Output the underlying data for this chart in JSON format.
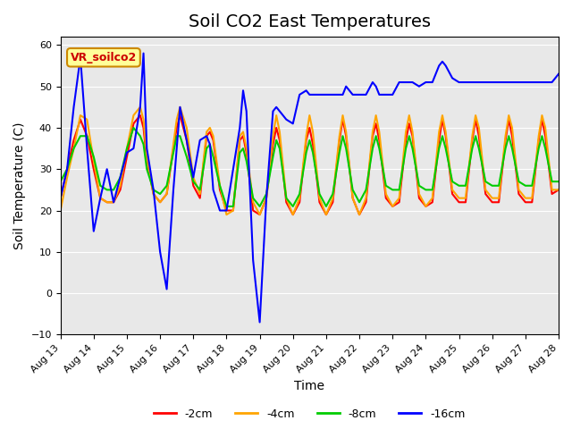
{
  "title": "Soil CO2 East Temperatures",
  "xlabel": "Time",
  "ylabel": "Soil Temperature (C)",
  "ylim": [
    -10,
    62
  ],
  "xlim": [
    0,
    15
  ],
  "xtick_labels": [
    "Aug 13",
    "Aug 14",
    "Aug 15",
    "Aug 16",
    "Aug 17",
    "Aug 18",
    "Aug 19",
    "Aug 20",
    "Aug 21",
    "Aug 22",
    "Aug 23",
    "Aug 24",
    "Aug 25",
    "Aug 26",
    "Aug 27",
    "Aug 28"
  ],
  "xtick_positions": [
    0,
    1,
    2,
    3,
    4,
    5,
    6,
    7,
    8,
    9,
    10,
    11,
    12,
    13,
    14,
    15
  ],
  "legend_labels": [
    "-2cm",
    "-4cm",
    "-8cm",
    "-16cm"
  ],
  "legend_colors": [
    "#ff0000",
    "#ffa500",
    "#00cc00",
    "#0000ff"
  ],
  "line_colors": [
    "#ff0000",
    "#ffa500",
    "#00cc00",
    "#0000ff"
  ],
  "bg_color": "#e8e8e8",
  "label_box_color": "#ffff99",
  "label_box_text": "VR_soilco2",
  "label_box_text_color": "#cc0000",
  "title_fontsize": 14,
  "axis_label_fontsize": 10,
  "tick_fontsize": 8,
  "t": [
    0,
    0.2,
    0.4,
    0.6,
    0.8,
    1.0,
    1.2,
    1.4,
    1.5,
    1.6,
    1.8,
    2.0,
    2.2,
    2.4,
    2.5,
    2.6,
    2.8,
    3.0,
    3.2,
    3.4,
    3.5,
    3.6,
    3.8,
    4.0,
    4.2,
    4.4,
    4.5,
    4.6,
    4.8,
    5.0,
    5.2,
    5.4,
    5.5,
    5.6,
    5.8,
    6.0,
    6.2,
    6.4,
    6.5,
    6.6,
    6.8,
    7.0,
    7.2,
    7.4,
    7.5,
    7.6,
    7.8,
    8.0,
    8.2,
    8.4,
    8.5,
    8.6,
    8.8,
    9.0,
    9.2,
    9.4,
    9.5,
    9.6,
    9.8,
    10.0,
    10.2,
    10.4,
    10.5,
    10.6,
    10.8,
    11.0,
    11.2,
    11.4,
    11.5,
    11.6,
    11.8,
    12.0,
    12.2,
    12.4,
    12.5,
    12.6,
    12.8,
    13.0,
    13.2,
    13.4,
    13.5,
    13.6,
    13.8,
    14.0,
    14.2,
    14.4,
    14.5,
    14.6,
    14.8,
    15.0
  ],
  "y_2cm": [
    23,
    30,
    37,
    42,
    38,
    30,
    23,
    22,
    22,
    22,
    25,
    33,
    41,
    43,
    40,
    32,
    24,
    22,
    24,
    35,
    40,
    43,
    37,
    26,
    23,
    38,
    39,
    37,
    25,
    20,
    20,
    37,
    38,
    34,
    20,
    19,
    23,
    36,
    40,
    37,
    22,
    19,
    22,
    37,
    40,
    36,
    22,
    19,
    22,
    37,
    42,
    38,
    23,
    19,
    22,
    38,
    41,
    37,
    23,
    21,
    22,
    37,
    41,
    38,
    23,
    21,
    22,
    37,
    42,
    38,
    24,
    22,
    22,
    37,
    42,
    38,
    24,
    22,
    22,
    37,
    42,
    38,
    24,
    22,
    22,
    37,
    42,
    38,
    24,
    25
  ],
  "y_4cm": [
    20,
    28,
    35,
    43,
    42,
    32,
    23,
    22,
    22,
    22,
    26,
    35,
    43,
    45,
    42,
    33,
    24,
    22,
    24,
    36,
    42,
    45,
    40,
    28,
    24,
    39,
    40,
    38,
    26,
    19,
    20,
    38,
    39,
    35,
    22,
    19,
    23,
    38,
    43,
    39,
    23,
    19,
    23,
    38,
    43,
    39,
    23,
    19,
    23,
    38,
    43,
    39,
    23,
    19,
    23,
    39,
    43,
    39,
    24,
    21,
    23,
    39,
    43,
    39,
    24,
    21,
    23,
    39,
    43,
    39,
    25,
    23,
    23,
    38,
    43,
    40,
    25,
    23,
    23,
    38,
    43,
    40,
    25,
    23,
    23,
    38,
    43,
    40,
    25,
    25
  ],
  "y_8cm": [
    27,
    30,
    35,
    38,
    38,
    33,
    26,
    25,
    25,
    25,
    28,
    35,
    40,
    38,
    36,
    30,
    25,
    24,
    26,
    34,
    38,
    38,
    33,
    27,
    25,
    35,
    36,
    33,
    26,
    21,
    21,
    34,
    35,
    32,
    23,
    21,
    24,
    33,
    37,
    35,
    23,
    21,
    24,
    34,
    37,
    34,
    24,
    21,
    24,
    34,
    38,
    35,
    25,
    22,
    25,
    35,
    38,
    35,
    26,
    25,
    25,
    35,
    38,
    35,
    26,
    25,
    25,
    35,
    38,
    35,
    27,
    26,
    26,
    35,
    38,
    35,
    27,
    26,
    26,
    35,
    38,
    35,
    27,
    26,
    26,
    35,
    38,
    35,
    27,
    27
  ],
  "y_16cm": [
    23,
    30,
    45,
    57,
    35,
    15,
    23,
    30,
    26,
    22,
    28,
    34,
    35,
    45,
    58,
    35,
    25,
    10,
    1,
    25,
    35,
    45,
    37,
    28,
    37,
    38,
    36,
    25,
    20,
    20,
    30,
    40,
    49,
    44,
    8,
    -7,
    23,
    44,
    45,
    44,
    42,
    41,
    48,
    49,
    48,
    48,
    48,
    48,
    48,
    48,
    48,
    50,
    48,
    48,
    48,
    51,
    50,
    48,
    48,
    48,
    51,
    51,
    51,
    51,
    50,
    51,
    51,
    55,
    56,
    55,
    52,
    51,
    51,
    51,
    51,
    51,
    51,
    51,
    51,
    51,
    51,
    51,
    51,
    51,
    51,
    51,
    51,
    51,
    51,
    53
  ]
}
